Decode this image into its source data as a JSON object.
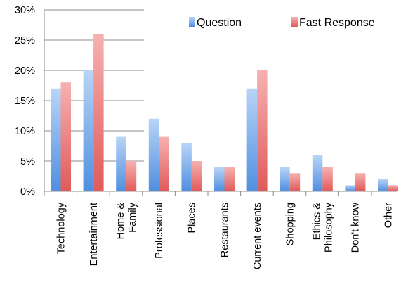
{
  "chart_data": {
    "type": "bar",
    "categories": [
      [
        "Technology"
      ],
      [
        "Entertainment"
      ],
      [
        "Home &",
        "Family"
      ],
      [
        "Professional"
      ],
      [
        "Places"
      ],
      [
        "Restaurants"
      ],
      [
        "Current events"
      ],
      [
        "Shopping"
      ],
      [
        "Ethics &",
        "Philosophy"
      ],
      [
        "Don't know"
      ],
      [
        "Other"
      ]
    ],
    "series": [
      {
        "name": "Question",
        "values": [
          17,
          20,
          9,
          12,
          8,
          4,
          17,
          4,
          6,
          1,
          2
        ],
        "color_top": "#b9d4f6",
        "color_bottom": "#4f8fe0"
      },
      {
        "name": "Fast Response",
        "values": [
          18,
          26,
          5,
          9,
          5,
          4,
          20,
          3,
          4,
          3,
          1
        ],
        "color_top": "#f7b1b1",
        "color_bottom": "#e05a5a"
      }
    ],
    "ylim": [
      0,
      30
    ],
    "yticks": [
      0,
      5,
      10,
      15,
      20,
      25,
      30
    ],
    "ytick_labels": [
      "0%",
      "5%",
      "10%",
      "15%",
      "20%",
      "25%",
      "30%"
    ],
    "grid": true,
    "legend": "top-right",
    "title": "",
    "xlabel": "",
    "ylabel": ""
  }
}
